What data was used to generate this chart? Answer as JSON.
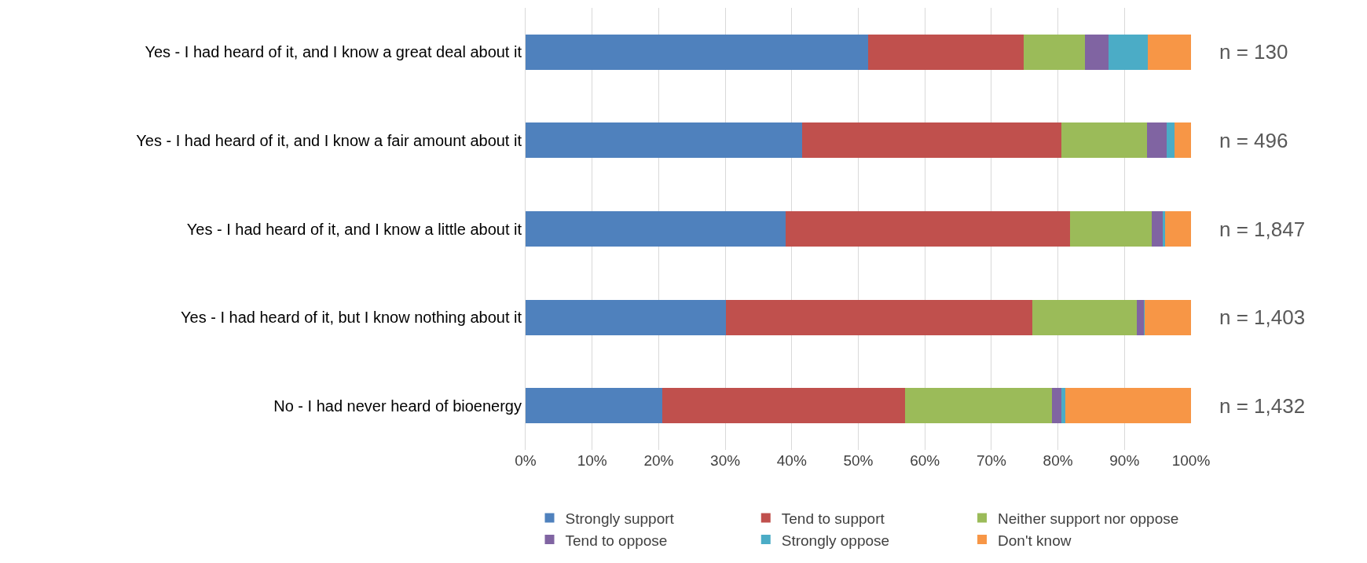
{
  "chart_data": {
    "type": "bar",
    "orientation": "horizontal",
    "stacked": true,
    "categories": [
      "Yes - I had heard of it, and I know a great deal about it",
      "Yes - I had heard of it, and I know a fair amount about it",
      "Yes - I had heard of it, and I know a little about it",
      "Yes - I had heard of it, but I know nothing about it",
      "No - I had never heard of bioenergy"
    ],
    "series": [
      {
        "name": "Strongly support",
        "color": "#4f81bd",
        "values": [
          51.5,
          41.6,
          39.1,
          30.1,
          20.5
        ]
      },
      {
        "name": "Tend to support",
        "color": "#c0504d",
        "values": [
          23.3,
          38.9,
          42.7,
          46.0,
          36.5
        ]
      },
      {
        "name": "Neither support nor oppose",
        "color": "#9bbb59",
        "values": [
          9.3,
          12.9,
          12.3,
          15.8,
          22.1
        ]
      },
      {
        "name": "Tend to oppose",
        "color": "#8064a2",
        "values": [
          3.5,
          2.9,
          1.7,
          1.0,
          1.4
        ]
      },
      {
        "name": "Strongly oppose",
        "color": "#4bacc6",
        "values": [
          5.9,
          1.2,
          0.3,
          0.1,
          0.6
        ]
      },
      {
        "name": "Don't know",
        "color": "#f79646",
        "values": [
          6.5,
          2.5,
          3.9,
          7.0,
          18.9
        ]
      }
    ],
    "xlim": [
      0,
      100
    ],
    "xticks": [
      {
        "value": 0,
        "label": "0%"
      },
      {
        "value": 10,
        "label": "10%"
      },
      {
        "value": 20,
        "label": "20%"
      },
      {
        "value": 30,
        "label": "30%"
      },
      {
        "value": 40,
        "label": "40%"
      },
      {
        "value": 50,
        "label": "50%"
      },
      {
        "value": 60,
        "label": "60%"
      },
      {
        "value": 70,
        "label": "70%"
      },
      {
        "value": 80,
        "label": "80%"
      },
      {
        "value": 90,
        "label": "90%"
      },
      {
        "value": 100,
        "label": "100%"
      }
    ],
    "grid": "x",
    "legend": "bottom",
    "annotations": [
      "n = 130",
      "n = 496",
      "n = 1,847",
      "n = 1,403",
      "n = 1,432"
    ]
  }
}
